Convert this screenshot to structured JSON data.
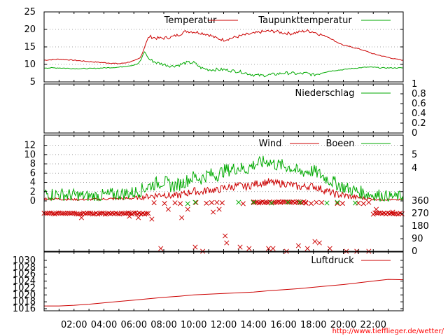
{
  "chart_data": {
    "type": "line",
    "x": {
      "tick_labels": [
        "02:00",
        "04:00",
        "06:00",
        "08:00",
        "10:00",
        "12:00",
        "14:00",
        "16:00",
        "18:00",
        "20:00",
        "22:00"
      ],
      "range_hours": [
        0,
        24
      ]
    },
    "panels": [
      {
        "id": "temperature",
        "ylim": [
          5,
          25
        ],
        "yticks": [
          "5",
          "10",
          "15",
          "20",
          "25"
        ],
        "grid": true,
        "legend_position": "top",
        "series": [
          {
            "name": "Temperatur",
            "color": "#cc0000",
            "hours": [
              0,
              1,
              2,
              3,
              4,
              5,
              5.5,
              6,
              6.4,
              6.6,
              6.8,
              7.0,
              7.5,
              8,
              8.5,
              9,
              9.5,
              10,
              10.5,
              11,
              11.5,
              12,
              12.5,
              13,
              13.5,
              14,
              14.5,
              15,
              15.5,
              16,
              16.5,
              17,
              17.5,
              18,
              18.5,
              19,
              19.5,
              20,
              20.5,
              21,
              21.5,
              22,
              22.5,
              23,
              23.5,
              24
            ],
            "values": [
              11.2,
              11.5,
              11.2,
              10.8,
              10.5,
              10.2,
              10.5,
              11.0,
              11.8,
              13.5,
              16.0,
              18.0,
              17.5,
              17.5,
              17.8,
              18.5,
              19.5,
              19.3,
              19.0,
              18.5,
              17.5,
              17.0,
              17.5,
              18.0,
              18.5,
              18.8,
              19.3,
              19.5,
              19.4,
              19.0,
              18.8,
              19.2,
              19.6,
              19.3,
              18.5,
              17.8,
              16.5,
              15.5,
              15.0,
              14.5,
              13.8,
              13.0,
              12.5,
              12.0,
              11.5,
              11.2
            ]
          },
          {
            "name": "Taupunkttemperatur",
            "color": "#00aa00",
            "hours": [
              0,
              1,
              2,
              3,
              4,
              5,
              5.5,
              6,
              6.3,
              6.5,
              6.7,
              7.0,
              7.5,
              8,
              8.5,
              9,
              9.5,
              10,
              10.5,
              11,
              11.5,
              12,
              12.5,
              13,
              13.5,
              14,
              14.5,
              15,
              15.5,
              16,
              16.5,
              17,
              17.5,
              18,
              18.5,
              19,
              19.5,
              20,
              20.5,
              21,
              21.5,
              22,
              22.5,
              23,
              23.5,
              24
            ],
            "values": [
              9.0,
              9.0,
              8.8,
              8.8,
              9.0,
              9.2,
              9.5,
              9.8,
              10.2,
              11.5,
              13.8,
              11.5,
              10.5,
              10.0,
              9.5,
              9.8,
              10.5,
              10.5,
              9.0,
              8.5,
              8.5,
              8.5,
              8.2,
              8.0,
              7.5,
              7.0,
              6.8,
              7.0,
              7.2,
              7.5,
              7.5,
              7.3,
              7.5,
              7.0,
              7.5,
              8.0,
              8.3,
              8.5,
              8.8,
              9.0,
              9.2,
              9.2,
              9.0,
              9.0,
              9.0,
              9.0
            ]
          }
        ]
      },
      {
        "id": "precipitation",
        "ylim": [
          0,
          1
        ],
        "yticks": [
          "0",
          "0.2",
          "0.4",
          "0.6",
          "0.8",
          "1"
        ],
        "legend_position": "top-right",
        "series": [
          {
            "name": "Niederschlag",
            "color": "#00aa00",
            "hours": [
              0,
              24
            ],
            "values": [
              0,
              0
            ]
          }
        ]
      },
      {
        "id": "wind",
        "ylim": [
          0,
          13
        ],
        "yticks": [
          "0",
          "2",
          "4",
          "6",
          "8",
          "10",
          "12"
        ],
        "yticks_right": [
          "4",
          "5"
        ],
        "grid": true,
        "legend_position": "top-right",
        "series": [
          {
            "name": "Wind",
            "color": "#cc0000",
            "hours": [
              0,
              1,
              2,
              3,
              4,
              5,
              6,
              6.5,
              7,
              7.5,
              8,
              8.5,
              9,
              9.5,
              10,
              10.5,
              11,
              11.5,
              12,
              12.5,
              13,
              13.5,
              14,
              14.5,
              15,
              15.5,
              16,
              16.5,
              17,
              17.5,
              18,
              18.5,
              19,
              19.5,
              20,
              20.5,
              21,
              21.5,
              22,
              22.5,
              23,
              23.5,
              24
            ],
            "values": [
              0.5,
              0.4,
              0.3,
              0.3,
              0.4,
              0.5,
              0.6,
              0.8,
              1.0,
              1.2,
              1.5,
              1.0,
              1.2,
              1.6,
              2.2,
              1.8,
              2.5,
              2.2,
              2.8,
              3.0,
              3.3,
              3.0,
              3.6,
              3.9,
              4.1,
              3.7,
              3.8,
              3.5,
              3.0,
              3.1,
              3.2,
              2.6,
              2.0,
              1.4,
              1.2,
              0.9,
              0.7,
              0.5,
              0.4,
              0.3,
              0.3,
              0.2,
              0.3
            ]
          },
          {
            "name": "Boeen",
            "color": "#00aa00",
            "hours": [
              0,
              1,
              2,
              3,
              4,
              5,
              6,
              6.5,
              7,
              7.5,
              8,
              8.5,
              9,
              9.5,
              10,
              10.5,
              11,
              11.5,
              12,
              12.5,
              13,
              13.5,
              14,
              14.5,
              15,
              15.5,
              16,
              16.5,
              17,
              17.5,
              18,
              18.5,
              19,
              19.5,
              20,
              20.5,
              21,
              21.5,
              22,
              22.5,
              23,
              23.5,
              24
            ],
            "values": [
              1.6,
              1.4,
              1.2,
              1.0,
              1.2,
              1.5,
              1.8,
              2.4,
              3.2,
              3.8,
              4.2,
              3.2,
              3.5,
              4.3,
              5.2,
              4.8,
              5.8,
              5.5,
              6.5,
              6.8,
              7.2,
              6.8,
              7.8,
              8.2,
              8.6,
              7.8,
              7.6,
              7.2,
              6.2,
              6.4,
              6.5,
              5.6,
              4.6,
              3.8,
              3.0,
              2.4,
              2.0,
              1.6,
              1.3,
              1.2,
              1.0,
              0.9,
              1.1
            ]
          }
        ]
      },
      {
        "id": "wind_direction",
        "type": "scatter",
        "ylim": [
          0,
          360
        ],
        "yticks": [
          "0",
          "90",
          "180",
          "270",
          "360"
        ],
        "grid": false,
        "series": [
          {
            "name": "",
            "color": "#cc0000",
            "marker": "x",
            "bands": [
              {
                "from": 0,
                "to": 7,
                "value": 270,
                "dense": true
              },
              {
                "from": 7,
                "to": 14,
                "value": 345,
                "dense": false
              },
              {
                "from": 14,
                "to": 17.5,
                "value": 350,
                "dense": true
              },
              {
                "from": 17.5,
                "to": 22,
                "value": 345,
                "dense": false
              },
              {
                "from": 22,
                "to": 24,
                "value": 270,
                "dense": true
              }
            ],
            "scatter": [
              [
                2.5,
                240
              ],
              [
                5.7,
                250
              ],
              [
                6.3,
                240
              ],
              [
                7.2,
                230
              ],
              [
                7.8,
                20
              ],
              [
                8.3,
                300
              ],
              [
                9.2,
                240
              ],
              [
                9.6,
                300
              ],
              [
                10.1,
                30
              ],
              [
                10.6,
                0
              ],
              [
                11.3,
                280
              ],
              [
                11.7,
                300
              ],
              [
                12.1,
                110
              ],
              [
                12.2,
                60
              ],
              [
                13.1,
                30
              ],
              [
                13.7,
                20
              ],
              [
                15.0,
                20
              ],
              [
                15.3,
                20
              ],
              [
                16.2,
                0
              ],
              [
                17.0,
                40
              ],
              [
                17.6,
                20
              ],
              [
                18.1,
                70
              ],
              [
                18.4,
                60
              ],
              [
                19.1,
                20
              ],
              [
                20.2,
                0
              ],
              [
                20.9,
                0
              ],
              [
                21.7,
                0
              ],
              [
                22.2,
                300
              ],
              [
                23.3,
                280
              ]
            ]
          },
          {
            "name": "",
            "color": "#00aa00",
            "marker": "x",
            "scatter": [
              [
                9.6,
                340
              ],
              [
                10.1,
                350
              ],
              [
                13.0,
                350
              ],
              [
                14.0,
                350
              ],
              [
                15.2,
                345
              ],
              [
                16.3,
                350
              ],
              [
                17.1,
                350
              ],
              [
                18.9,
                345
              ],
              [
                19.6,
                350
              ],
              [
                20.8,
                345
              ]
            ]
          }
        ]
      },
      {
        "id": "pressure",
        "ylim": [
          1016,
          1031
        ],
        "yticks": [
          "1016",
          "1018",
          "1020",
          "1022",
          "1024",
          "1026",
          "1028",
          "1030"
        ],
        "legend_position": "top-right",
        "series": [
          {
            "name": "Luftdruck",
            "color": "#cc0000",
            "hours": [
              0,
              1,
              2,
              3,
              4,
              5,
              6,
              7,
              8,
              9,
              10,
              11,
              12,
              13,
              14,
              15,
              16,
              17,
              18,
              19,
              20,
              21,
              22,
              23,
              24
            ],
            "values": [
              1016.8,
              1016.8,
              1017.0,
              1017.3,
              1017.7,
              1018.1,
              1018.5,
              1018.9,
              1019.3,
              1019.6,
              1020.0,
              1020.2,
              1020.4,
              1020.6,
              1020.8,
              1021.2,
              1021.5,
              1021.8,
              1022.2,
              1022.6,
              1023.0,
              1023.5,
              1024.0,
              1024.5,
              1024.4
            ]
          }
        ]
      }
    ],
    "credit": "http://www.tiefflieger.de/wetter/"
  }
}
